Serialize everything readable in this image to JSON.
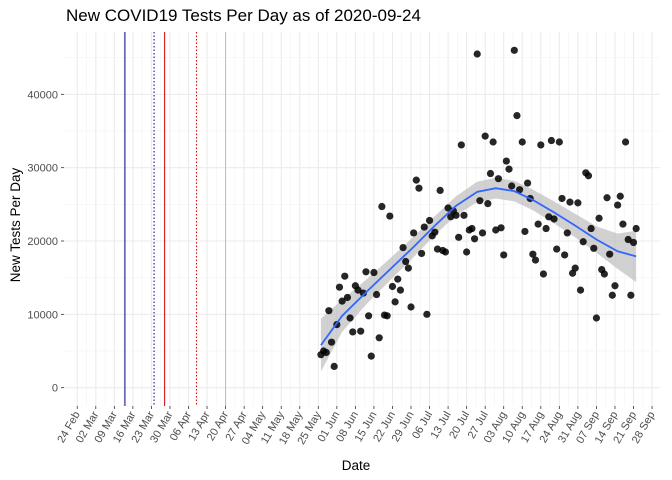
{
  "chart_data": {
    "type": "scatter",
    "title": "New COVID19 Tests Per Day as of 2020-09-24",
    "xlabel": "Date",
    "ylabel": "New Tests Per Day",
    "xlim": [
      "2020-02-19",
      "2020-10-01"
    ],
    "ylim": [
      -2500,
      48500
    ],
    "grid": true,
    "legend": "none",
    "x_ticks": [
      "2020-02-24",
      "2020-03-02",
      "2020-03-09",
      "2020-03-16",
      "2020-03-23",
      "2020-03-30",
      "2020-04-06",
      "2020-04-13",
      "2020-04-20",
      "2020-04-27",
      "2020-05-04",
      "2020-05-11",
      "2020-05-18",
      "2020-05-25",
      "2020-06-01",
      "2020-06-08",
      "2020-06-15",
      "2020-06-22",
      "2020-06-29",
      "2020-07-06",
      "2020-07-13",
      "2020-07-20",
      "2020-07-27",
      "2020-08-03",
      "2020-08-10",
      "2020-08-17",
      "2020-08-24",
      "2020-08-31",
      "2020-09-07",
      "2020-09-14",
      "2020-09-21",
      "2020-09-28"
    ],
    "x_tick_labels": [
      "24 Feb",
      "02 Mar",
      "09 Mar",
      "16 Mar",
      "23 Mar",
      "30 Mar",
      "06 Apr",
      "13 Apr",
      "20 Apr",
      "27 Apr",
      "04 May",
      "11 May",
      "18 May",
      "25 May",
      "01 Jun",
      "08 Jun",
      "15 Jun",
      "22 Jun",
      "29 Jun",
      "06 Jul",
      "13 Jul",
      "20 Jul",
      "27 Jul",
      "03 Aug",
      "10 Aug",
      "17 Aug",
      "24 Aug",
      "31 Aug",
      "07 Sep",
      "14 Sep",
      "21 Sep",
      "28 Sep"
    ],
    "y_ticks": [
      0,
      10000,
      20000,
      30000,
      40000
    ],
    "y_tick_labels": [
      "0",
      "10000",
      "20000",
      "30000",
      "40000"
    ],
    "vlines": [
      {
        "x": "2020-03-13",
        "color": "#00008B",
        "style": "solid"
      },
      {
        "x": "2020-03-24",
        "color": "#00008B",
        "style": "dotted"
      },
      {
        "x": "2020-03-28",
        "color": "#CC0000",
        "style": "solid"
      },
      {
        "x": "2020-04-09",
        "color": "#CC0000",
        "style": "dotted"
      },
      {
        "x": "2020-04-20",
        "color": "#F4A6A6",
        "style": "solid"
      }
    ],
    "point_color": "#000000",
    "smooth_color": "#3366FF",
    "band_color": "#bdbdbd",
    "points": [
      {
        "x": "2020-05-26",
        "y": 4500
      },
      {
        "x": "2020-05-27",
        "y": 5000
      },
      {
        "x": "2020-05-28",
        "y": 4800
      },
      {
        "x": "2020-05-29",
        "y": 10500
      },
      {
        "x": "2020-05-30",
        "y": 6200
      },
      {
        "x": "2020-05-31",
        "y": 2900
      },
      {
        "x": "2020-06-01",
        "y": 8600
      },
      {
        "x": "2020-06-02",
        "y": 13700
      },
      {
        "x": "2020-06-03",
        "y": 11800
      },
      {
        "x": "2020-06-04",
        "y": 15200
      },
      {
        "x": "2020-06-05",
        "y": 12300
      },
      {
        "x": "2020-06-06",
        "y": 9500
      },
      {
        "x": "2020-06-07",
        "y": 7600
      },
      {
        "x": "2020-06-08",
        "y": 13900
      },
      {
        "x": "2020-06-09",
        "y": 13300
      },
      {
        "x": "2020-06-10",
        "y": 7700
      },
      {
        "x": "2020-06-11",
        "y": 12900
      },
      {
        "x": "2020-06-12",
        "y": 15800
      },
      {
        "x": "2020-06-13",
        "y": 9800
      },
      {
        "x": "2020-06-14",
        "y": 4300
      },
      {
        "x": "2020-06-15",
        "y": 15700
      },
      {
        "x": "2020-06-16",
        "y": 12700
      },
      {
        "x": "2020-06-17",
        "y": 6800
      },
      {
        "x": "2020-06-18",
        "y": 24700
      },
      {
        "x": "2020-06-19",
        "y": 9900
      },
      {
        "x": "2020-06-20",
        "y": 9800
      },
      {
        "x": "2020-06-21",
        "y": 23400
      },
      {
        "x": "2020-06-22",
        "y": 13800
      },
      {
        "x": "2020-06-23",
        "y": 11700
      },
      {
        "x": "2020-06-24",
        "y": 14800
      },
      {
        "x": "2020-06-25",
        "y": 13300
      },
      {
        "x": "2020-06-26",
        "y": 19100
      },
      {
        "x": "2020-06-27",
        "y": 17200
      },
      {
        "x": "2020-06-28",
        "y": 16300
      },
      {
        "x": "2020-06-29",
        "y": 11000
      },
      {
        "x": "2020-06-30",
        "y": 21100
      },
      {
        "x": "2020-07-01",
        "y": 28300
      },
      {
        "x": "2020-07-02",
        "y": 27200
      },
      {
        "x": "2020-07-03",
        "y": 18300
      },
      {
        "x": "2020-07-04",
        "y": 21900
      },
      {
        "x": "2020-07-05",
        "y": 10000
      },
      {
        "x": "2020-07-06",
        "y": 22800
      },
      {
        "x": "2020-07-07",
        "y": 20700
      },
      {
        "x": "2020-07-08",
        "y": 21200
      },
      {
        "x": "2020-07-09",
        "y": 18900
      },
      {
        "x": "2020-07-10",
        "y": 26900
      },
      {
        "x": "2020-07-11",
        "y": 18700
      },
      {
        "x": "2020-07-12",
        "y": 18500
      },
      {
        "x": "2020-07-13",
        "y": 24500
      },
      {
        "x": "2020-07-14",
        "y": 23300
      },
      {
        "x": "2020-07-15",
        "y": 24100
      },
      {
        "x": "2020-07-16",
        "y": 23500
      },
      {
        "x": "2020-07-17",
        "y": 20500
      },
      {
        "x": "2020-07-18",
        "y": 33100
      },
      {
        "x": "2020-07-19",
        "y": 23500
      },
      {
        "x": "2020-07-20",
        "y": 18500
      },
      {
        "x": "2020-07-21",
        "y": 21500
      },
      {
        "x": "2020-07-22",
        "y": 21700
      },
      {
        "x": "2020-07-23",
        "y": 20300
      },
      {
        "x": "2020-07-24",
        "y": 45500
      },
      {
        "x": "2020-07-25",
        "y": 25500
      },
      {
        "x": "2020-07-26",
        "y": 21100
      },
      {
        "x": "2020-07-27",
        "y": 34300
      },
      {
        "x": "2020-07-28",
        "y": 25100
      },
      {
        "x": "2020-07-29",
        "y": 29200
      },
      {
        "x": "2020-07-30",
        "y": 33500
      },
      {
        "x": "2020-07-31",
        "y": 21500
      },
      {
        "x": "2020-08-01",
        "y": 28500
      },
      {
        "x": "2020-08-02",
        "y": 21800
      },
      {
        "x": "2020-08-03",
        "y": 18100
      },
      {
        "x": "2020-08-04",
        "y": 30900
      },
      {
        "x": "2020-08-05",
        "y": 29800
      },
      {
        "x": "2020-08-06",
        "y": 27500
      },
      {
        "x": "2020-08-07",
        "y": 46000
      },
      {
        "x": "2020-08-08",
        "y": 37100
      },
      {
        "x": "2020-08-09",
        "y": 27000
      },
      {
        "x": "2020-08-10",
        "y": 33500
      },
      {
        "x": "2020-08-11",
        "y": 21300
      },
      {
        "x": "2020-08-12",
        "y": 27900
      },
      {
        "x": "2020-08-13",
        "y": 25800
      },
      {
        "x": "2020-08-14",
        "y": 18200
      },
      {
        "x": "2020-08-15",
        "y": 17400
      },
      {
        "x": "2020-08-16",
        "y": 22300
      },
      {
        "x": "2020-08-17",
        "y": 33100
      },
      {
        "x": "2020-08-18",
        "y": 15500
      },
      {
        "x": "2020-08-19",
        "y": 21700
      },
      {
        "x": "2020-08-20",
        "y": 23300
      },
      {
        "x": "2020-08-21",
        "y": 33700
      },
      {
        "x": "2020-08-22",
        "y": 23000
      },
      {
        "x": "2020-08-23",
        "y": 18900
      },
      {
        "x": "2020-08-24",
        "y": 33500
      },
      {
        "x": "2020-08-25",
        "y": 25800
      },
      {
        "x": "2020-08-26",
        "y": 18100
      },
      {
        "x": "2020-08-27",
        "y": 21100
      },
      {
        "x": "2020-08-28",
        "y": 25300
      },
      {
        "x": "2020-08-29",
        "y": 15600
      },
      {
        "x": "2020-08-30",
        "y": 16300
      },
      {
        "x": "2020-08-31",
        "y": 25200
      },
      {
        "x": "2020-09-01",
        "y": 13300
      },
      {
        "x": "2020-09-02",
        "y": 19900
      },
      {
        "x": "2020-09-03",
        "y": 29300
      },
      {
        "x": "2020-09-04",
        "y": 28900
      },
      {
        "x": "2020-09-05",
        "y": 21700
      },
      {
        "x": "2020-09-06",
        "y": 19000
      },
      {
        "x": "2020-09-07",
        "y": 9500
      },
      {
        "x": "2020-09-08",
        "y": 23100
      },
      {
        "x": "2020-09-09",
        "y": 16100
      },
      {
        "x": "2020-09-10",
        "y": 15500
      },
      {
        "x": "2020-09-11",
        "y": 25900
      },
      {
        "x": "2020-09-12",
        "y": 18200
      },
      {
        "x": "2020-09-13",
        "y": 12600
      },
      {
        "x": "2020-09-14",
        "y": 13900
      },
      {
        "x": "2020-09-15",
        "y": 24900
      },
      {
        "x": "2020-09-16",
        "y": 26100
      },
      {
        "x": "2020-09-17",
        "y": 22300
      },
      {
        "x": "2020-09-18",
        "y": 33500
      },
      {
        "x": "2020-09-19",
        "y": 20200
      },
      {
        "x": "2020-09-20",
        "y": 12600
      },
      {
        "x": "2020-09-21",
        "y": 19800
      },
      {
        "x": "2020-09-22",
        "y": 21700
      }
    ],
    "smooth": [
      {
        "x": "2020-05-26",
        "y": 5800,
        "lo": 2200,
        "hi": 9400
      },
      {
        "x": "2020-06-03",
        "y": 9800,
        "lo": 7600,
        "hi": 12000
      },
      {
        "x": "2020-06-12",
        "y": 13000,
        "lo": 11300,
        "hi": 14700
      },
      {
        "x": "2020-06-21",
        "y": 16100,
        "lo": 14600,
        "hi": 17600
      },
      {
        "x": "2020-06-30",
        "y": 19200,
        "lo": 17800,
        "hi": 20600
      },
      {
        "x": "2020-07-08",
        "y": 22100,
        "lo": 20800,
        "hi": 23400
      },
      {
        "x": "2020-07-16",
        "y": 24800,
        "lo": 23500,
        "hi": 26100
      },
      {
        "x": "2020-07-24",
        "y": 26700,
        "lo": 25300,
        "hi": 28100
      },
      {
        "x": "2020-07-31",
        "y": 27200,
        "lo": 25800,
        "hi": 28600
      },
      {
        "x": "2020-08-07",
        "y": 26800,
        "lo": 25400,
        "hi": 28200
      },
      {
        "x": "2020-08-14",
        "y": 25600,
        "lo": 24200,
        "hi": 27000
      },
      {
        "x": "2020-08-22",
        "y": 23900,
        "lo": 22400,
        "hi": 25400
      },
      {
        "x": "2020-08-30",
        "y": 22100,
        "lo": 20500,
        "hi": 23700
      },
      {
        "x": "2020-09-07",
        "y": 20200,
        "lo": 18400,
        "hi": 22000
      },
      {
        "x": "2020-09-15",
        "y": 18600,
        "lo": 16200,
        "hi": 21000
      },
      {
        "x": "2020-09-22",
        "y": 17900,
        "lo": 14400,
        "hi": 21400
      }
    ]
  }
}
